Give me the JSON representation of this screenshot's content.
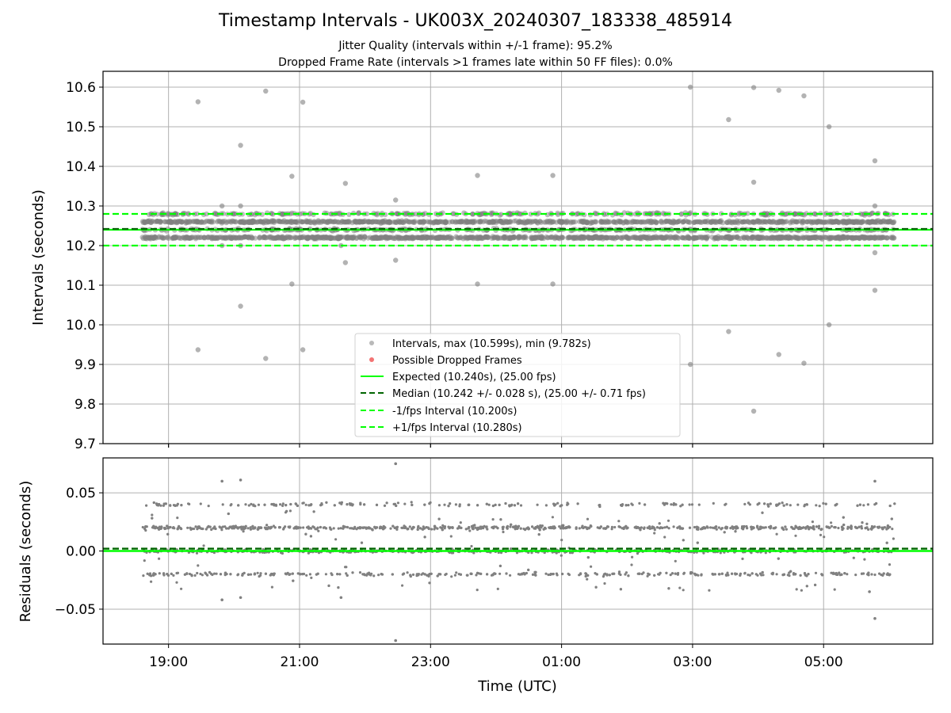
{
  "figure": {
    "title": "Timestamp Intervals - UK003X_20240307_183338_485914",
    "subtitle_1": "Jitter Quality (intervals within +/-1 frame): 95.2%",
    "subtitle_2": "Dropped Frame Rate (intervals >1 frames late within 50 FF files): 0.0%"
  },
  "chart_data": [
    {
      "type": "scatter",
      "panel": "top",
      "xlabel": "",
      "ylabel": "Intervals (seconds)",
      "xlim": [
        "18:00",
        "06:40"
      ],
      "ylim": [
        9.7,
        10.64
      ],
      "x_ticks": [
        "19:00",
        "21:00",
        "23:00",
        "01:00",
        "03:00",
        "05:00"
      ],
      "y_ticks": [
        "9.7",
        "9.8",
        "9.9",
        "10.0",
        "10.1",
        "10.2",
        "10.3",
        "10.4",
        "10.5",
        "10.6"
      ],
      "grid": true,
      "legend_position": "lower-center",
      "x_range_of_data": [
        "18:36",
        "06:05"
      ],
      "series": [
        {
          "name": "Intervals, max (10.599s), min (9.782s)",
          "kind": "scatter",
          "color": "#808080",
          "dense_band_levels": [
            10.22,
            10.24,
            10.26,
            10.28
          ],
          "outliers": [
            {
              "x": "19:27",
              "y": 10.563
            },
            {
              "x": "19:27",
              "y": 9.937
            },
            {
              "x": "19:49",
              "y": 10.3
            },
            {
              "x": "19:49",
              "y": 10.2
            },
            {
              "x": "20:06",
              "y": 10.453
            },
            {
              "x": "20:06",
              "y": 10.3
            },
            {
              "x": "20:06",
              "y": 10.2
            },
            {
              "x": "20:06",
              "y": 10.047
            },
            {
              "x": "20:29",
              "y": 10.59
            },
            {
              "x": "20:29",
              "y": 9.915
            },
            {
              "x": "20:53",
              "y": 10.375
            },
            {
              "x": "20:53",
              "y": 10.103
            },
            {
              "x": "21:03",
              "y": 10.562
            },
            {
              "x": "21:03",
              "y": 9.937
            },
            {
              "x": "21:38",
              "y": 10.2
            },
            {
              "x": "21:42",
              "y": 10.357
            },
            {
              "x": "21:42",
              "y": 10.157
            },
            {
              "x": "22:28",
              "y": 10.315
            },
            {
              "x": "22:28",
              "y": 10.163
            },
            {
              "x": "23:43",
              "y": 10.377
            },
            {
              "x": "23:43",
              "y": 10.103
            },
            {
              "x": "00:52",
              "y": 10.377
            },
            {
              "x": "00:52",
              "y": 10.103
            },
            {
              "x": "02:58",
              "y": 10.6
            },
            {
              "x": "02:58",
              "y": 9.9
            },
            {
              "x": "03:33",
              "y": 10.518
            },
            {
              "x": "03:33",
              "y": 9.983
            },
            {
              "x": "03:56",
              "y": 10.599
            },
            {
              "x": "03:56",
              "y": 10.36
            },
            {
              "x": "03:56",
              "y": 9.782
            },
            {
              "x": "04:19",
              "y": 10.592
            },
            {
              "x": "04:19",
              "y": 9.925
            },
            {
              "x": "04:42",
              "y": 10.578
            },
            {
              "x": "04:42",
              "y": 9.903
            },
            {
              "x": "05:05",
              "y": 10.5
            },
            {
              "x": "05:05",
              "y": 10.0
            },
            {
              "x": "05:47",
              "y": 10.414
            },
            {
              "x": "05:47",
              "y": 10.3
            },
            {
              "x": "05:47",
              "y": 10.182
            },
            {
              "x": "05:47",
              "y": 10.087
            }
          ]
        },
        {
          "name": "Possible Dropped Frames",
          "kind": "scatter",
          "color": "#f05050",
          "points": []
        },
        {
          "name": "Expected (10.240s), (25.00 fps)",
          "kind": "hline",
          "y": 10.24,
          "color": "#00ff00",
          "style": "solid"
        },
        {
          "name": "Median (10.242 +/- 0.028 s), (25.00 +/- 0.71 fps)",
          "kind": "hline",
          "y": 10.242,
          "color": "#006400",
          "style": "dashed"
        },
        {
          "name": "-1/fps Interval (10.200s)",
          "kind": "hline",
          "y": 10.2,
          "color": "#00ff00",
          "style": "dashed"
        },
        {
          "name": "+1/fps Interval (10.280s)",
          "kind": "hline",
          "y": 10.28,
          "color": "#00ff00",
          "style": "dashed"
        }
      ]
    },
    {
      "type": "scatter",
      "panel": "bottom",
      "xlabel": "Time (UTC)",
      "ylabel": "Residuals (seconds)",
      "xlim": [
        "18:00",
        "06:40"
      ],
      "ylim": [
        -0.08,
        0.08
      ],
      "x_ticks": [
        "19:00",
        "21:00",
        "23:00",
        "01:00",
        "03:00",
        "05:00"
      ],
      "y_ticks": [
        "−0.05",
        "0.00",
        "0.05"
      ],
      "y_tick_values": [
        -0.05,
        0.0,
        0.05
      ],
      "grid": true,
      "series": [
        {
          "kind": "scatter",
          "color": "#808080",
          "dense_band_levels": [
            -0.02,
            0.0,
            0.02,
            0.04
          ],
          "outliers": [
            {
              "x": "19:49",
              "y": 0.06
            },
            {
              "x": "20:06",
              "y": 0.061
            },
            {
              "x": "19:49",
              "y": -0.042
            },
            {
              "x": "20:06",
              "y": -0.04
            },
            {
              "x": "21:38",
              "y": -0.04
            },
            {
              "x": "22:28",
              "y": 0.075
            },
            {
              "x": "22:28",
              "y": -0.077
            },
            {
              "x": "05:42",
              "y": -0.035
            },
            {
              "x": "05:47",
              "y": 0.06
            },
            {
              "x": "05:47",
              "y": -0.058
            }
          ]
        },
        {
          "kind": "hline",
          "y": 0.0,
          "color": "#00ff00",
          "style": "solid"
        },
        {
          "kind": "hline",
          "y": 0.002,
          "color": "#006400",
          "style": "dashed"
        }
      ]
    }
  ]
}
